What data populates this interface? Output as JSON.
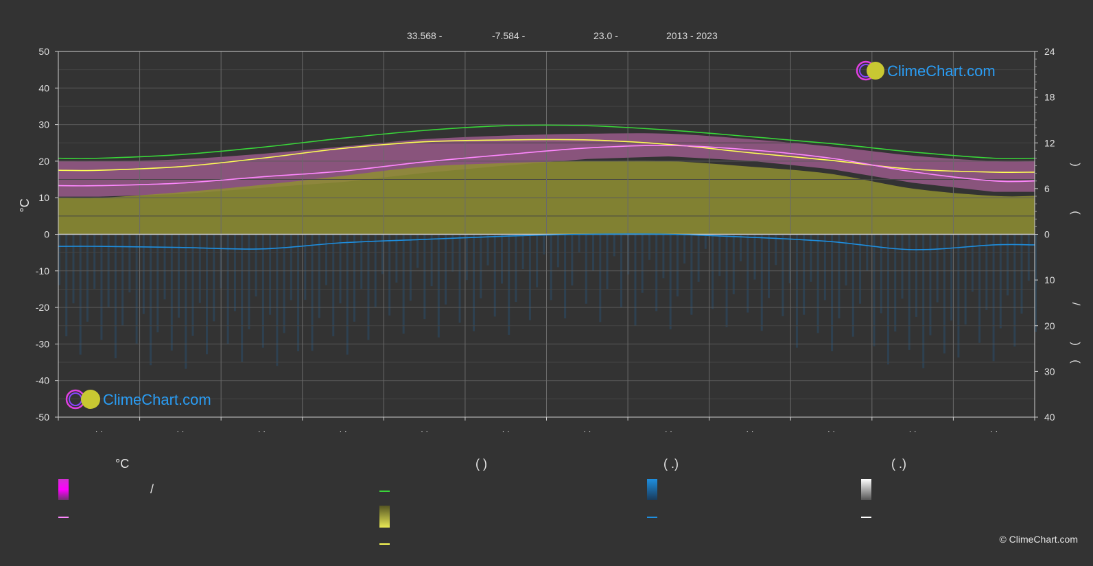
{
  "header": {
    "lat": "33.568 -",
    "lon": "-7.584 -",
    "elev": "23.0 -",
    "years": "2013 - 2023"
  },
  "logo_text": "ClimeChart.com",
  "copyright": "© ClimeChart.com",
  "legend": {
    "temp_unit": "°C",
    "sun_head": "(        )",
    "rain_head": "(   .)",
    "snow_head": "(   .)",
    "slash": "/"
  },
  "colors": {
    "background": "#333333",
    "grid": "#5a5a5a",
    "max_temp_line": "#39d639",
    "daylight_line": "#ffff55",
    "mean_temp_line": "#ff88ff",
    "rain_line": "#1e8fe0",
    "sunshine_fill": "#8f8f32",
    "temp_range_fill": "#d070b8",
    "precip_bars": "#2a4c6a",
    "snow_line": "#ffffff"
  },
  "chart_data": {
    "type": "line",
    "left_axis": {
      "label": "°C",
      "ylim": [
        -50,
        50
      ],
      "ticks": [
        50,
        40,
        30,
        20,
        10,
        0,
        -10,
        -20,
        -30,
        -40,
        -50
      ]
    },
    "right_axis_top": {
      "ticks": [
        24,
        18,
        12,
        6,
        0
      ]
    },
    "right_axis_bottom": {
      "ticks": [
        0,
        10,
        20,
        30,
        40
      ]
    },
    "right_axis_labels": [
      ")",
      "(",
      "/",
      ")",
      "("
    ],
    "x_tick_labels": [
      "· ·",
      "· ·",
      "· ·",
      "· ·",
      "· ·",
      "· ·",
      "· ·",
      "· ·",
      "· ·",
      "· ·",
      "· ·",
      "· ·"
    ],
    "months": 12,
    "series": [
      {
        "key": "max_temp_line",
        "values": [
          20.8,
          21.8,
          23.8,
          26.3,
          28.4,
          29.7,
          29.7,
          28.5,
          26.7,
          24.8,
          22.5,
          20.8
        ]
      },
      {
        "key": "daylight_line",
        "values": [
          17.5,
          18.5,
          20.8,
          23.5,
          25.3,
          25.8,
          25.8,
          24.6,
          22.3,
          20.2,
          17.8,
          17.0
        ]
      },
      {
        "key": "mean_temp_line",
        "values": [
          13.3,
          14.0,
          15.7,
          17.3,
          19.8,
          21.8,
          23.6,
          24.3,
          23.1,
          20.8,
          17.1,
          14.6
        ]
      },
      {
        "key": "temp_range_top",
        "values": [
          20.0,
          20.5,
          22.0,
          24.0,
          26.0,
          27.0,
          27.5,
          27.5,
          26.0,
          24.0,
          21.5,
          20.0
        ]
      },
      {
        "key": "sunshine_top",
        "values": [
          10.0,
          11.5,
          13.5,
          16.0,
          18.5,
          19.5,
          20.0,
          20.0,
          18.5,
          16.5,
          12.5,
          10.5
        ]
      },
      {
        "key": "rain_line",
        "values": [
          -3.3,
          -3.6,
          -4.0,
          -2.3,
          -1.4,
          -0.5,
          0.0,
          0.0,
          -0.8,
          -2.0,
          -4.2,
          -2.9
        ]
      }
    ]
  }
}
